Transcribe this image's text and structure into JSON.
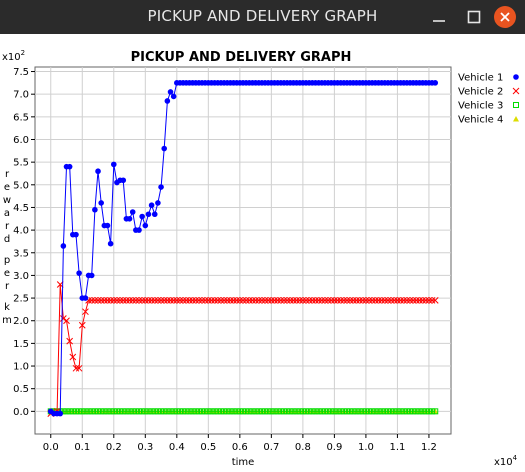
{
  "window": {
    "title": "PICKUP AND DELIVERY GRAPH",
    "buttons": [
      "minimize",
      "maximize",
      "close"
    ],
    "close_color": "#e95420"
  },
  "chart_data": {
    "type": "line",
    "title": "PICKUP AND DELIVERY GRAPH",
    "xlabel": "time",
    "ylabel": "reward per km",
    "x_multiplier": "x10^4",
    "y_multiplier": "x10^2",
    "xlim": [
      -0.05,
      1.27
    ],
    "ylim": [
      -0.5,
      7.6
    ],
    "xticks": [
      0.0,
      0.1,
      0.2,
      0.3,
      0.4,
      0.5,
      0.6,
      0.7,
      0.8,
      0.9,
      1.0,
      1.1,
      1.2
    ],
    "xtick_labels": [
      "0.0",
      "0.1",
      "0.2",
      "0.3",
      "0.4",
      "0.5",
      "0.6",
      "0.7",
      "0.8",
      "0.9",
      "1.0",
      "1.1",
      "1.2"
    ],
    "yticks": [
      0.0,
      0.5,
      1.0,
      1.5,
      2.0,
      2.5,
      3.0,
      3.5,
      4.0,
      4.5,
      5.0,
      5.5,
      6.0,
      6.5,
      7.0,
      7.5
    ],
    "ytick_labels": [
      "0.0",
      "0.5",
      "1.0",
      "1.5",
      "2.0",
      "2.5",
      "3.0",
      "3.5",
      "4.0",
      "4.5",
      "5.0",
      "5.5",
      "6.0",
      "6.5",
      "7.0",
      "7.5"
    ],
    "grid": true,
    "legend_position": "right",
    "series": [
      {
        "name": "Vehicle 1",
        "color": "#0000ff",
        "marker": "circle",
        "line": true,
        "x": [
          0.0,
          0.01,
          0.02,
          0.03,
          0.04,
          0.05,
          0.06,
          0.07,
          0.08,
          0.09,
          0.1,
          0.11,
          0.12,
          0.13,
          0.14,
          0.15,
          0.16,
          0.17,
          0.18,
          0.19,
          0.2,
          0.21,
          0.22,
          0.23,
          0.24,
          0.25,
          0.26,
          0.27,
          0.28,
          0.29,
          0.3,
          0.31,
          0.32,
          0.33,
          0.34,
          0.35,
          0.36,
          0.37,
          0.38,
          0.39,
          0.4,
          0.41,
          0.42,
          0.43,
          0.44,
          0.45,
          0.46,
          0.47,
          0.48,
          0.49,
          1.22
        ],
        "y": [
          0.0,
          -0.05,
          -0.05,
          -0.05,
          3.65,
          5.4,
          5.4,
          3.9,
          3.9,
          3.05,
          2.5,
          2.5,
          3.0,
          3.0,
          4.45,
          5.3,
          4.6,
          4.1,
          4.1,
          3.7,
          5.45,
          5.05,
          5.1,
          5.1,
          4.25,
          4.25,
          4.4,
          4.0,
          4.0,
          4.3,
          4.1,
          4.35,
          4.55,
          4.35,
          4.6,
          4.95,
          5.8,
          6.85,
          7.05,
          6.95,
          7.25,
          7.25,
          7.25,
          7.25,
          7.25,
          7.25,
          7.25,
          7.25,
          7.25,
          7.25,
          7.25
        ],
        "flat_to": 1.22,
        "flat_value": 7.25
      },
      {
        "name": "Vehicle 2",
        "color": "#ff0000",
        "marker": "x",
        "line": true,
        "x": [
          0.0,
          0.02,
          0.03,
          0.04,
          0.05,
          0.06,
          0.07,
          0.08,
          0.09,
          0.1,
          0.11,
          0.12,
          0.13,
          0.14,
          0.15,
          1.22
        ],
        "y": [
          -0.05,
          0.0,
          2.8,
          2.05,
          2.0,
          1.55,
          1.2,
          0.95,
          0.95,
          1.9,
          2.2,
          2.45,
          2.45,
          2.45,
          2.45,
          2.45
        ],
        "flat_to": 1.22,
        "flat_value": 2.45
      },
      {
        "name": "Vehicle 3",
        "color": "#00dd00",
        "marker": "square",
        "line": true,
        "x": [
          0.0,
          1.22
        ],
        "y": [
          0.0,
          0.0
        ],
        "flat_to": 1.22,
        "flat_value": 0.0
      },
      {
        "name": "Vehicle 4",
        "color": "#dddd00",
        "marker": "triangle",
        "line": true,
        "x": [
          0.0,
          1.22
        ],
        "y": [
          0.0,
          0.0
        ],
        "flat_to": 1.22,
        "flat_value": 0.0
      }
    ]
  }
}
